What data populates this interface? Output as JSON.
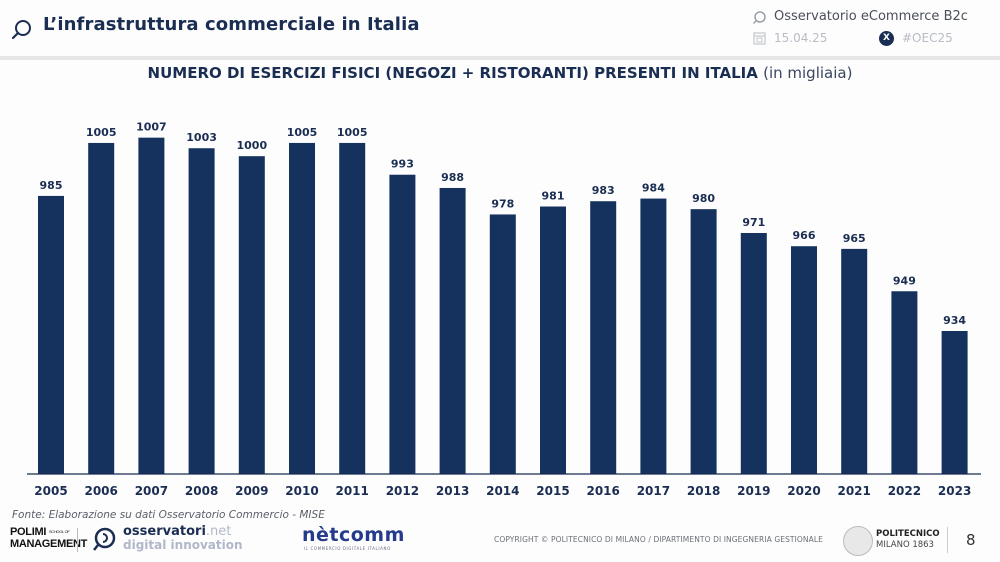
{
  "header": {
    "title": "L’infrastruttura commerciale in Italia",
    "observatory": "Osservatorio eCommerce B2c",
    "date": "15.04.25",
    "hashtag": "#OEC25",
    "x_icon_glyph": "X"
  },
  "chart_data": {
    "type": "bar",
    "title": "NUMERO DI ESERCIZI FISICI (NEGOZI + RISTORANTI) PRESENTI IN ITALIA",
    "subtitle": "(in migliaia)",
    "xlabel": "",
    "ylabel": "",
    "categories": [
      "2005",
      "2006",
      "2007",
      "2008",
      "2009",
      "2010",
      "2011",
      "2012",
      "2013",
      "2014",
      "2015",
      "2016",
      "2017",
      "2018",
      "2019",
      "2020",
      "2021",
      "2022",
      "2023"
    ],
    "values": [
      985,
      1005,
      1007,
      1003,
      1000,
      1005,
      1005,
      993,
      988,
      978,
      981,
      983,
      984,
      980,
      971,
      966,
      965,
      949,
      934
    ],
    "ylim": [
      880,
      1010
    ],
    "grid": false,
    "legend": "none",
    "bar_color": "#15325f",
    "data_labels": true
  },
  "footer": {
    "source": "Fonte: Elaborazione su dati Osservatorio Commercio - MISE",
    "polimi_line1": "POLIMI",
    "polimi_school": "SCHOOL OF",
    "polimi_line2": "MANAGEMENT",
    "osservatori_main": "osservatori",
    "osservatori_net": ".net",
    "osservatori_sub": "digital innovation",
    "netcomm": "nètcomm",
    "netcomm_sub": "IL COMMERCIO DIGITALE ITALIANO",
    "copyright": "COPYRIGHT © POLITECNICO DI MILANO / DIPARTIMENTO DI INGEGNERIA GESTIONALE",
    "politecnico_line1": "POLITECNICO",
    "politecnico_line2": "MILANO 1863",
    "page_number": "8"
  }
}
